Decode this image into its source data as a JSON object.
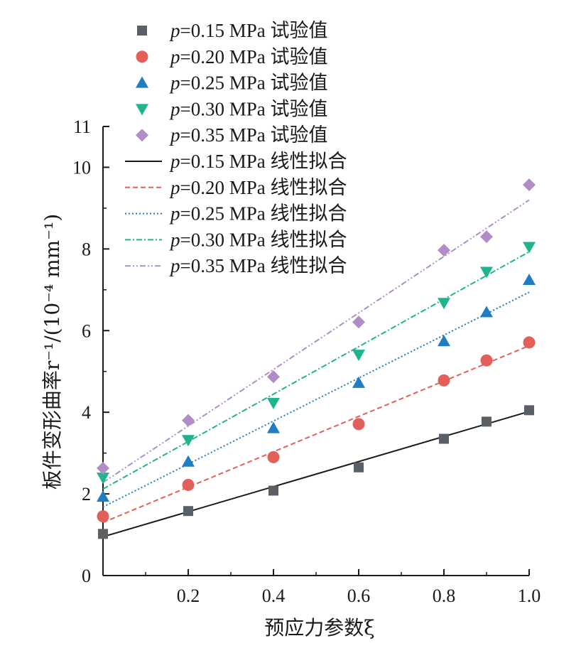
{
  "chart_data": {
    "type": "scatter",
    "xlabel": "预应力参数ξ",
    "ylabel": "板件变形曲率r⁻¹/(10⁻⁴ mm⁻¹)",
    "xlim": [
      0,
      1.0
    ],
    "ylim": [
      0,
      11
    ],
    "xticks": [
      0.2,
      0.4,
      0.6,
      0.8,
      1.0
    ],
    "xtick_labels": [
      "0.2",
      "0.4",
      "0.6",
      "0.8",
      "1.0"
    ],
    "yticks": [
      0,
      2,
      4,
      6,
      8,
      10,
      11
    ],
    "ytick_labels": [
      "0",
      "2",
      "4",
      "6",
      "8",
      "10",
      "11"
    ],
    "x": [
      0,
      0.2,
      0.4,
      0.6,
      0.8,
      0.9,
      1.0
    ],
    "grid": false,
    "legend_position": "top-left",
    "series": [
      {
        "name": "p=0.15 MPa 试验值",
        "kind": "points",
        "marker": "square",
        "color": "#5a6065",
        "values": [
          1.02,
          1.58,
          2.08,
          2.65,
          3.35,
          3.77,
          4.05
        ]
      },
      {
        "name": "p=0.20 MPa 试验值",
        "kind": "points",
        "marker": "circle",
        "color": "#e3605a",
        "values": [
          1.45,
          2.22,
          2.9,
          3.71,
          4.78,
          5.27,
          5.71
        ]
      },
      {
        "name": "p=0.25 MPa 试验值",
        "kind": "points",
        "marker": "triangle-up",
        "color": "#1f7dc1",
        "values": [
          1.93,
          2.79,
          3.61,
          4.72,
          5.74,
          6.45,
          7.24
        ]
      },
      {
        "name": "p=0.30 MPa 试验值",
        "kind": "points",
        "marker": "triangle-down",
        "color": "#1fb48e",
        "values": [
          2.4,
          3.32,
          4.23,
          5.41,
          6.68,
          7.44,
          8.05
        ]
      },
      {
        "name": "p=0.35 MPa 试验值",
        "kind": "points",
        "marker": "diamond",
        "color": "#b08dc7",
        "values": [
          2.63,
          3.8,
          4.87,
          6.21,
          7.97,
          8.3,
          9.57
        ]
      },
      {
        "name": "p=0.15 MPa 线性拟合",
        "kind": "line",
        "dash": "solid",
        "color": "#1a1a1a",
        "line": [
          [
            0,
            0.95
          ],
          [
            1.0,
            4.02
          ]
        ]
      },
      {
        "name": "p=0.20 MPa 线性拟合",
        "kind": "line",
        "dash": "dash",
        "color": "#e3605a",
        "line": [
          [
            0,
            1.3
          ],
          [
            1.0,
            5.63
          ]
        ]
      },
      {
        "name": "p=0.25 MPa 线性拟合",
        "kind": "line",
        "dash": "dot",
        "color": "#1f7dc1",
        "line": [
          [
            0,
            1.68
          ],
          [
            1.0,
            6.94
          ]
        ]
      },
      {
        "name": "p=0.30 MPa 线性拟合",
        "kind": "line",
        "dash": "dashdot",
        "color": "#1fb48e",
        "line": [
          [
            0,
            2.12
          ],
          [
            1.0,
            7.93
          ]
        ]
      },
      {
        "name": "p=0.35 MPa 线性拟合",
        "kind": "line",
        "dash": "dashdotdot",
        "color": "#b08dc7",
        "line": [
          [
            0,
            2.28
          ],
          [
            1.0,
            9.2
          ]
        ]
      }
    ]
  }
}
